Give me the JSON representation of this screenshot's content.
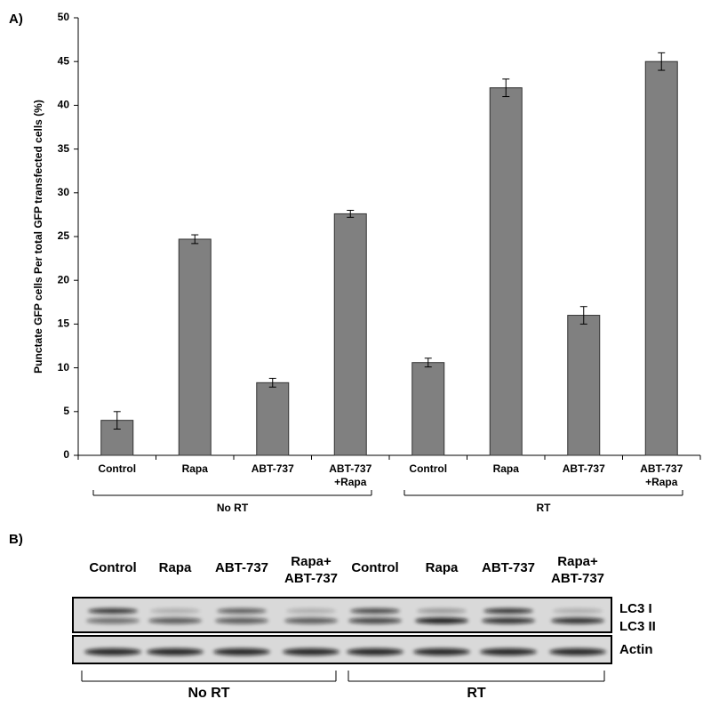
{
  "chart_data": {
    "type": "bar",
    "panel_label": "A)",
    "y_label": "Punctate GFP cells Per total GFP transfected cells (%)",
    "categories": [
      "Control",
      "Rapa",
      "ABT-737",
      "ABT-737\n+Rapa",
      "Control",
      "Rapa",
      "ABT-737",
      "ABT-737\n+Rapa"
    ],
    "values": [
      4.0,
      24.7,
      8.3,
      27.6,
      10.6,
      42.0,
      16.0,
      45.0
    ],
    "errors": [
      1.0,
      0.5,
      0.5,
      0.4,
      0.5,
      1.0,
      1.0,
      1.0
    ],
    "color": "#808080",
    "groups": [
      {
        "name": "No RT",
        "start": 0,
        "end": 3
      },
      {
        "name": "RT",
        "start": 4,
        "end": 7
      }
    ],
    "ylim": [
      0,
      50
    ],
    "yticks": [
      0,
      5,
      10,
      15,
      20,
      25,
      30,
      35,
      40,
      45,
      50
    ],
    "grid": false
  },
  "blot": {
    "panel_label": "B)",
    "lanes": [
      "Control",
      "Rapa",
      "ABT-737",
      "Rapa+\nABT-737",
      "Control",
      "Rapa",
      "ABT-737",
      "Rapa+\nABT-737"
    ],
    "bands": [
      "LC3 I",
      "LC3 II",
      "Actin"
    ],
    "groups": [
      {
        "name": "No RT",
        "start": 0,
        "end": 3
      },
      {
        "name": "RT",
        "start": 4,
        "end": 7
      }
    ]
  }
}
